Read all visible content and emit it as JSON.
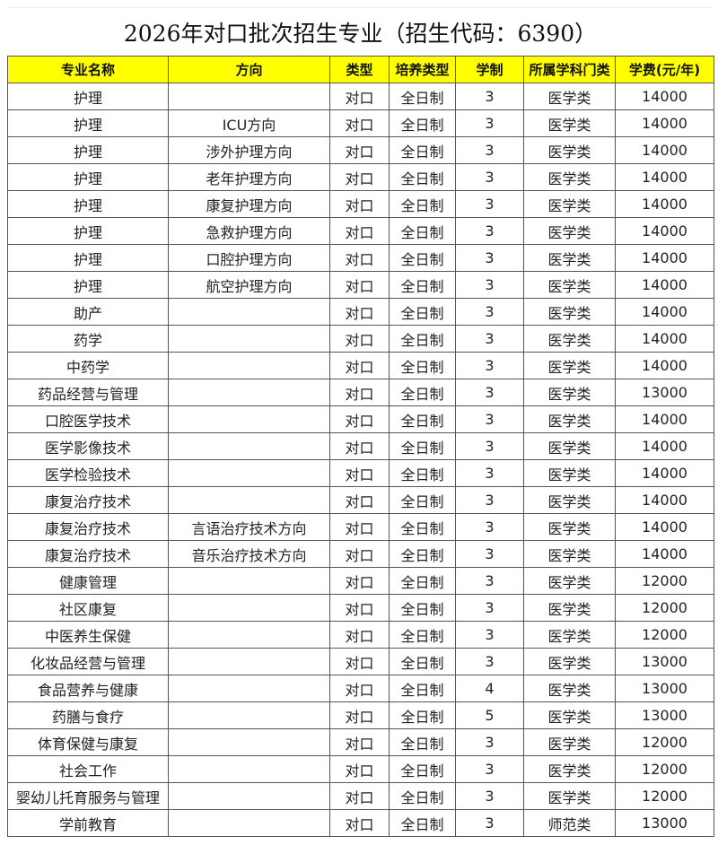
{
  "title": "2026年对口批次招生专业（招生代码：6390）",
  "colors": {
    "header_bg": "#ffff00",
    "border": "#555555"
  },
  "table": {
    "headers": [
      "专业名称",
      "方向",
      "类型",
      "培养类型",
      "学制",
      "所属学科门类",
      "学费(元/年)"
    ],
    "rows": [
      [
        "护理",
        "",
        "对口",
        "全日制",
        "3",
        "医学类",
        "14000"
      ],
      [
        "护理",
        "ICU方向",
        "对口",
        "全日制",
        "3",
        "医学类",
        "14000"
      ],
      [
        "护理",
        "涉外护理方向",
        "对口",
        "全日制",
        "3",
        "医学类",
        "14000"
      ],
      [
        "护理",
        "老年护理方向",
        "对口",
        "全日制",
        "3",
        "医学类",
        "14000"
      ],
      [
        "护理",
        "康复护理方向",
        "对口",
        "全日制",
        "3",
        "医学类",
        "14000"
      ],
      [
        "护理",
        "急救护理方向",
        "对口",
        "全日制",
        "3",
        "医学类",
        "14000"
      ],
      [
        "护理",
        "口腔护理方向",
        "对口",
        "全日制",
        "3",
        "医学类",
        "14000"
      ],
      [
        "护理",
        "航空护理方向",
        "对口",
        "全日制",
        "3",
        "医学类",
        "14000"
      ],
      [
        "助产",
        "",
        "对口",
        "全日制",
        "3",
        "医学类",
        "14000"
      ],
      [
        "药学",
        "",
        "对口",
        "全日制",
        "3",
        "医学类",
        "14000"
      ],
      [
        "中药学",
        "",
        "对口",
        "全日制",
        "3",
        "医学类",
        "14000"
      ],
      [
        "药品经营与管理",
        "",
        "对口",
        "全日制",
        "3",
        "医学类",
        "13000"
      ],
      [
        "口腔医学技术",
        "",
        "对口",
        "全日制",
        "3",
        "医学类",
        "14000"
      ],
      [
        "医学影像技术",
        "",
        "对口",
        "全日制",
        "3",
        "医学类",
        "14000"
      ],
      [
        "医学检验技术",
        "",
        "对口",
        "全日制",
        "3",
        "医学类",
        "14000"
      ],
      [
        "康复治疗技术",
        "",
        "对口",
        "全日制",
        "3",
        "医学类",
        "14000"
      ],
      [
        "康复治疗技术",
        "言语治疗技术方向",
        "对口",
        "全日制",
        "3",
        "医学类",
        "14000"
      ],
      [
        "康复治疗技术",
        "音乐治疗技术方向",
        "对口",
        "全日制",
        "3",
        "医学类",
        "14000"
      ],
      [
        "健康管理",
        "",
        "对口",
        "全日制",
        "3",
        "医学类",
        "12000"
      ],
      [
        "社区康复",
        "",
        "对口",
        "全日制",
        "3",
        "医学类",
        "12000"
      ],
      [
        "中医养生保健",
        "",
        "对口",
        "全日制",
        "3",
        "医学类",
        "12000"
      ],
      [
        "化妆品经营与管理",
        "",
        "对口",
        "全日制",
        "3",
        "医学类",
        "13000"
      ],
      [
        "食品营养与健康",
        "",
        "对口",
        "全日制",
        "4",
        "医学类",
        "13000"
      ],
      [
        "药膳与食疗",
        "",
        "对口",
        "全日制",
        "5",
        "医学类",
        "13000"
      ],
      [
        "体育保健与康复",
        "",
        "对口",
        "全日制",
        "3",
        "医学类",
        "12000"
      ],
      [
        "社会工作",
        "",
        "对口",
        "全日制",
        "3",
        "医学类",
        "12000"
      ],
      [
        "婴幼儿托育服务与管理",
        "",
        "对口",
        "全日制",
        "3",
        "医学类",
        "12000"
      ],
      [
        "学前教育",
        "",
        "对口",
        "全日制",
        "3",
        "师范类",
        "13000"
      ]
    ]
  }
}
